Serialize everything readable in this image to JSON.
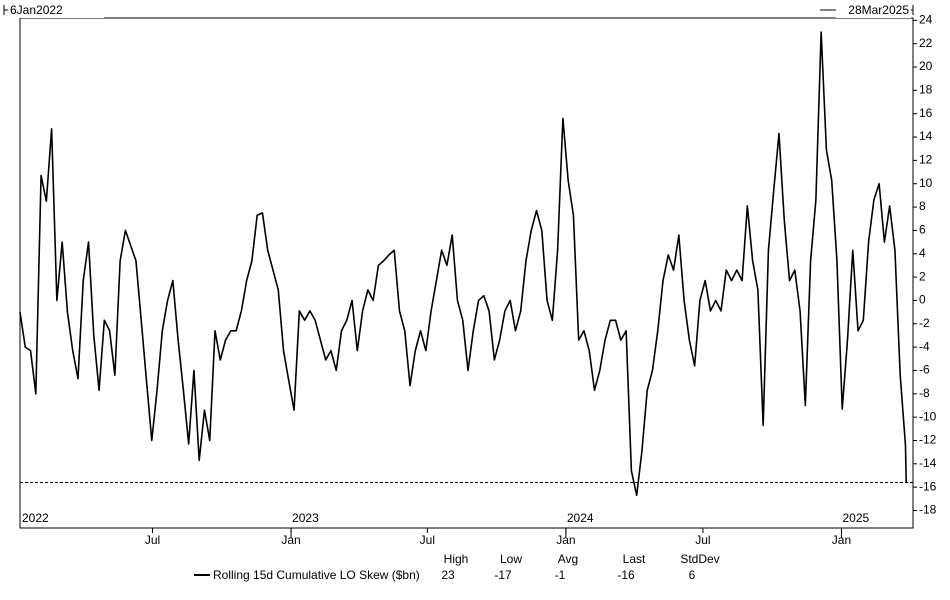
{
  "chart_data": {
    "type": "line",
    "start_label": "6Jan2022",
    "end_label": "28Mar2025",
    "x": [
      "2022-01-06",
      "2022-01-13",
      "2022-01-20",
      "2022-01-27",
      "2022-02-03",
      "2022-02-10",
      "2022-02-17",
      "2022-02-24",
      "2022-03-03",
      "2022-03-10",
      "2022-03-17",
      "2022-03-24",
      "2022-03-31",
      "2022-04-07",
      "2022-04-14",
      "2022-04-21",
      "2022-04-28",
      "2022-05-05",
      "2022-05-12",
      "2022-05-19",
      "2022-05-26",
      "2022-06-02",
      "2022-06-09",
      "2022-06-16",
      "2022-06-23",
      "2022-06-30",
      "2022-07-07",
      "2022-07-14",
      "2022-07-21",
      "2022-07-28",
      "2022-08-04",
      "2022-08-11",
      "2022-08-18",
      "2022-08-25",
      "2022-09-01",
      "2022-09-08",
      "2022-09-15",
      "2022-09-22",
      "2022-09-29",
      "2022-10-06",
      "2022-10-13",
      "2022-10-20",
      "2022-10-27",
      "2022-11-03",
      "2022-11-10",
      "2022-11-17",
      "2022-11-24",
      "2022-12-01",
      "2022-12-08",
      "2022-12-15",
      "2022-12-22",
      "2022-12-29",
      "2023-01-05",
      "2023-01-12",
      "2023-01-19",
      "2023-01-26",
      "2023-02-02",
      "2023-02-09",
      "2023-02-16",
      "2023-02-23",
      "2023-03-02",
      "2023-03-09",
      "2023-03-16",
      "2023-03-23",
      "2023-03-30",
      "2023-04-06",
      "2023-04-13",
      "2023-04-20",
      "2023-04-27",
      "2023-05-04",
      "2023-05-11",
      "2023-05-18",
      "2023-05-25",
      "2023-06-01",
      "2023-06-08",
      "2023-06-15",
      "2023-06-22",
      "2023-06-29",
      "2023-07-06",
      "2023-07-13",
      "2023-07-20",
      "2023-07-27",
      "2023-08-03",
      "2023-08-10",
      "2023-08-17",
      "2023-08-24",
      "2023-08-31",
      "2023-09-07",
      "2023-09-14",
      "2023-09-21",
      "2023-09-28",
      "2023-10-05",
      "2023-10-12",
      "2023-10-19",
      "2023-10-26",
      "2023-11-02",
      "2023-11-09",
      "2023-11-16",
      "2023-11-23",
      "2023-11-30",
      "2023-12-07",
      "2023-12-14",
      "2023-12-21",
      "2023-12-28",
      "2024-01-04",
      "2024-01-11",
      "2024-01-18",
      "2024-01-25",
      "2024-02-01",
      "2024-02-08",
      "2024-02-15",
      "2024-02-22",
      "2024-02-29",
      "2024-03-07",
      "2024-03-14",
      "2024-03-21",
      "2024-03-28",
      "2024-04-04",
      "2024-04-11",
      "2024-04-18",
      "2024-04-25",
      "2024-05-02",
      "2024-05-09",
      "2024-05-16",
      "2024-05-23",
      "2024-05-30",
      "2024-06-06",
      "2024-06-13",
      "2024-06-20",
      "2024-06-27",
      "2024-07-04",
      "2024-07-11",
      "2024-07-18",
      "2024-07-25",
      "2024-08-01",
      "2024-08-08",
      "2024-08-15",
      "2024-08-22",
      "2024-08-29",
      "2024-09-05",
      "2024-09-12",
      "2024-09-19",
      "2024-09-26",
      "2024-10-03",
      "2024-10-10",
      "2024-10-17",
      "2024-10-24",
      "2024-10-31",
      "2024-11-07",
      "2024-11-14",
      "2024-11-21",
      "2024-11-28",
      "2024-12-05",
      "2024-12-12",
      "2024-12-19",
      "2024-12-26",
      "2025-01-02",
      "2025-01-09",
      "2025-01-16",
      "2025-01-23",
      "2025-01-30",
      "2025-02-06",
      "2025-02-13",
      "2025-02-20",
      "2025-02-27",
      "2025-03-06",
      "2025-03-13",
      "2025-03-20",
      "2025-03-27",
      "2025-03-28"
    ],
    "series": [
      {
        "name": "Rolling 15d Cumulative LO Skew ($bn)",
        "color": "#000000",
        "values": [
          -1,
          -4,
          -4.3,
          -8,
          10.7,
          8.5,
          14.7,
          0,
          5,
          -1,
          -4.3,
          -6.7,
          1.7,
          5,
          -3,
          -7.7,
          -1.7,
          -2.6,
          -6.4,
          3.4,
          6,
          4.7,
          3.4,
          -1.7,
          -6.9,
          -12,
          -7.7,
          -2.6,
          0,
          1.7,
          -3.4,
          -7.7,
          -12.3,
          -6,
          -13.7,
          -9.4,
          -12,
          -2.6,
          -5.1,
          -3.4,
          -2.6,
          -2.6,
          -0.9,
          1.7,
          3.4,
          7.3,
          7.5,
          4.3,
          2.6,
          0.9,
          -4.3,
          -6.9,
          -9.4,
          -0.9,
          -1.7,
          -0.9,
          -1.7,
          -3.4,
          -5.1,
          -4.3,
          -6,
          -2.6,
          -1.7,
          0,
          -4.3,
          -0.9,
          0.9,
          0,
          3,
          3.4,
          3.9,
          4.3,
          -0.9,
          -2.6,
          -7.3,
          -4.3,
          -2.6,
          -4.3,
          -0.9,
          1.7,
          4.3,
          3,
          5.6,
          0,
          -1.7,
          -6,
          -2.6,
          0,
          0.4,
          -0.9,
          -5.1,
          -3.4,
          -0.9,
          0,
          -2.6,
          -0.9,
          3.4,
          6,
          7.7,
          6,
          0,
          -1.7,
          4.3,
          15.6,
          10.3,
          7.3,
          -3.4,
          -2.6,
          -4.3,
          -7.7,
          -6,
          -3.4,
          -1.7,
          -1.7,
          -3.4,
          -2.6,
          -14.6,
          -16.7,
          -12.9,
          -7.7,
          -6,
          -2.6,
          1.7,
          3.9,
          2.6,
          5.6,
          0,
          -3.4,
          -5.6,
          0,
          1.7,
          -0.9,
          0,
          -0.9,
          2.6,
          1.7,
          2.6,
          1.7,
          8.1,
          3.4,
          0.9,
          -10.7,
          4.3,
          9.4,
          14.3,
          6.9,
          1.7,
          2.6,
          -0.9,
          -9,
          3.4,
          8.6,
          23,
          12.9,
          10.3,
          3.4,
          -9.3,
          -3.4,
          4.3,
          -2.6,
          -1.7,
          5,
          8.6,
          10,
          5,
          8.1,
          4.3,
          -6.4,
          -12.4,
          -15.6
        ]
      }
    ],
    "reference_line": -15.6,
    "xlim": [
      "2022-01-06",
      "2025-04-06"
    ],
    "xticks": [
      {
        "value": "2022-07-01",
        "label": "Jul"
      },
      {
        "value": "2023-01-01",
        "label": "Jan"
      },
      {
        "value": "2023-07-01",
        "label": "Jul"
      },
      {
        "value": "2024-01-01",
        "label": "Jan"
      },
      {
        "value": "2024-07-01",
        "label": "Jul"
      },
      {
        "value": "2025-01-01",
        "label": "Jan"
      }
    ],
    "year_labels": [
      {
        "value": "2022-01-01",
        "label": "2022"
      },
      {
        "value": "2023-01-01",
        "label": "2023"
      },
      {
        "value": "2024-01-01",
        "label": "2024"
      },
      {
        "value": "2025-01-01",
        "label": "2025"
      }
    ],
    "ylim": [
      -19.5,
      24.2
    ],
    "yticks": [
      24,
      22,
      20,
      18,
      16,
      14,
      12,
      10,
      8,
      6,
      4,
      2,
      0,
      -2,
      -4,
      -6,
      -8,
      -10,
      -12,
      -14,
      -16,
      -18
    ],
    "grid": false,
    "stats": {
      "labels": [
        "High",
        "Low",
        "Avg",
        "Last",
        "StdDev"
      ],
      "values": [
        23,
        -17,
        -1,
        -16,
        6
      ]
    }
  }
}
